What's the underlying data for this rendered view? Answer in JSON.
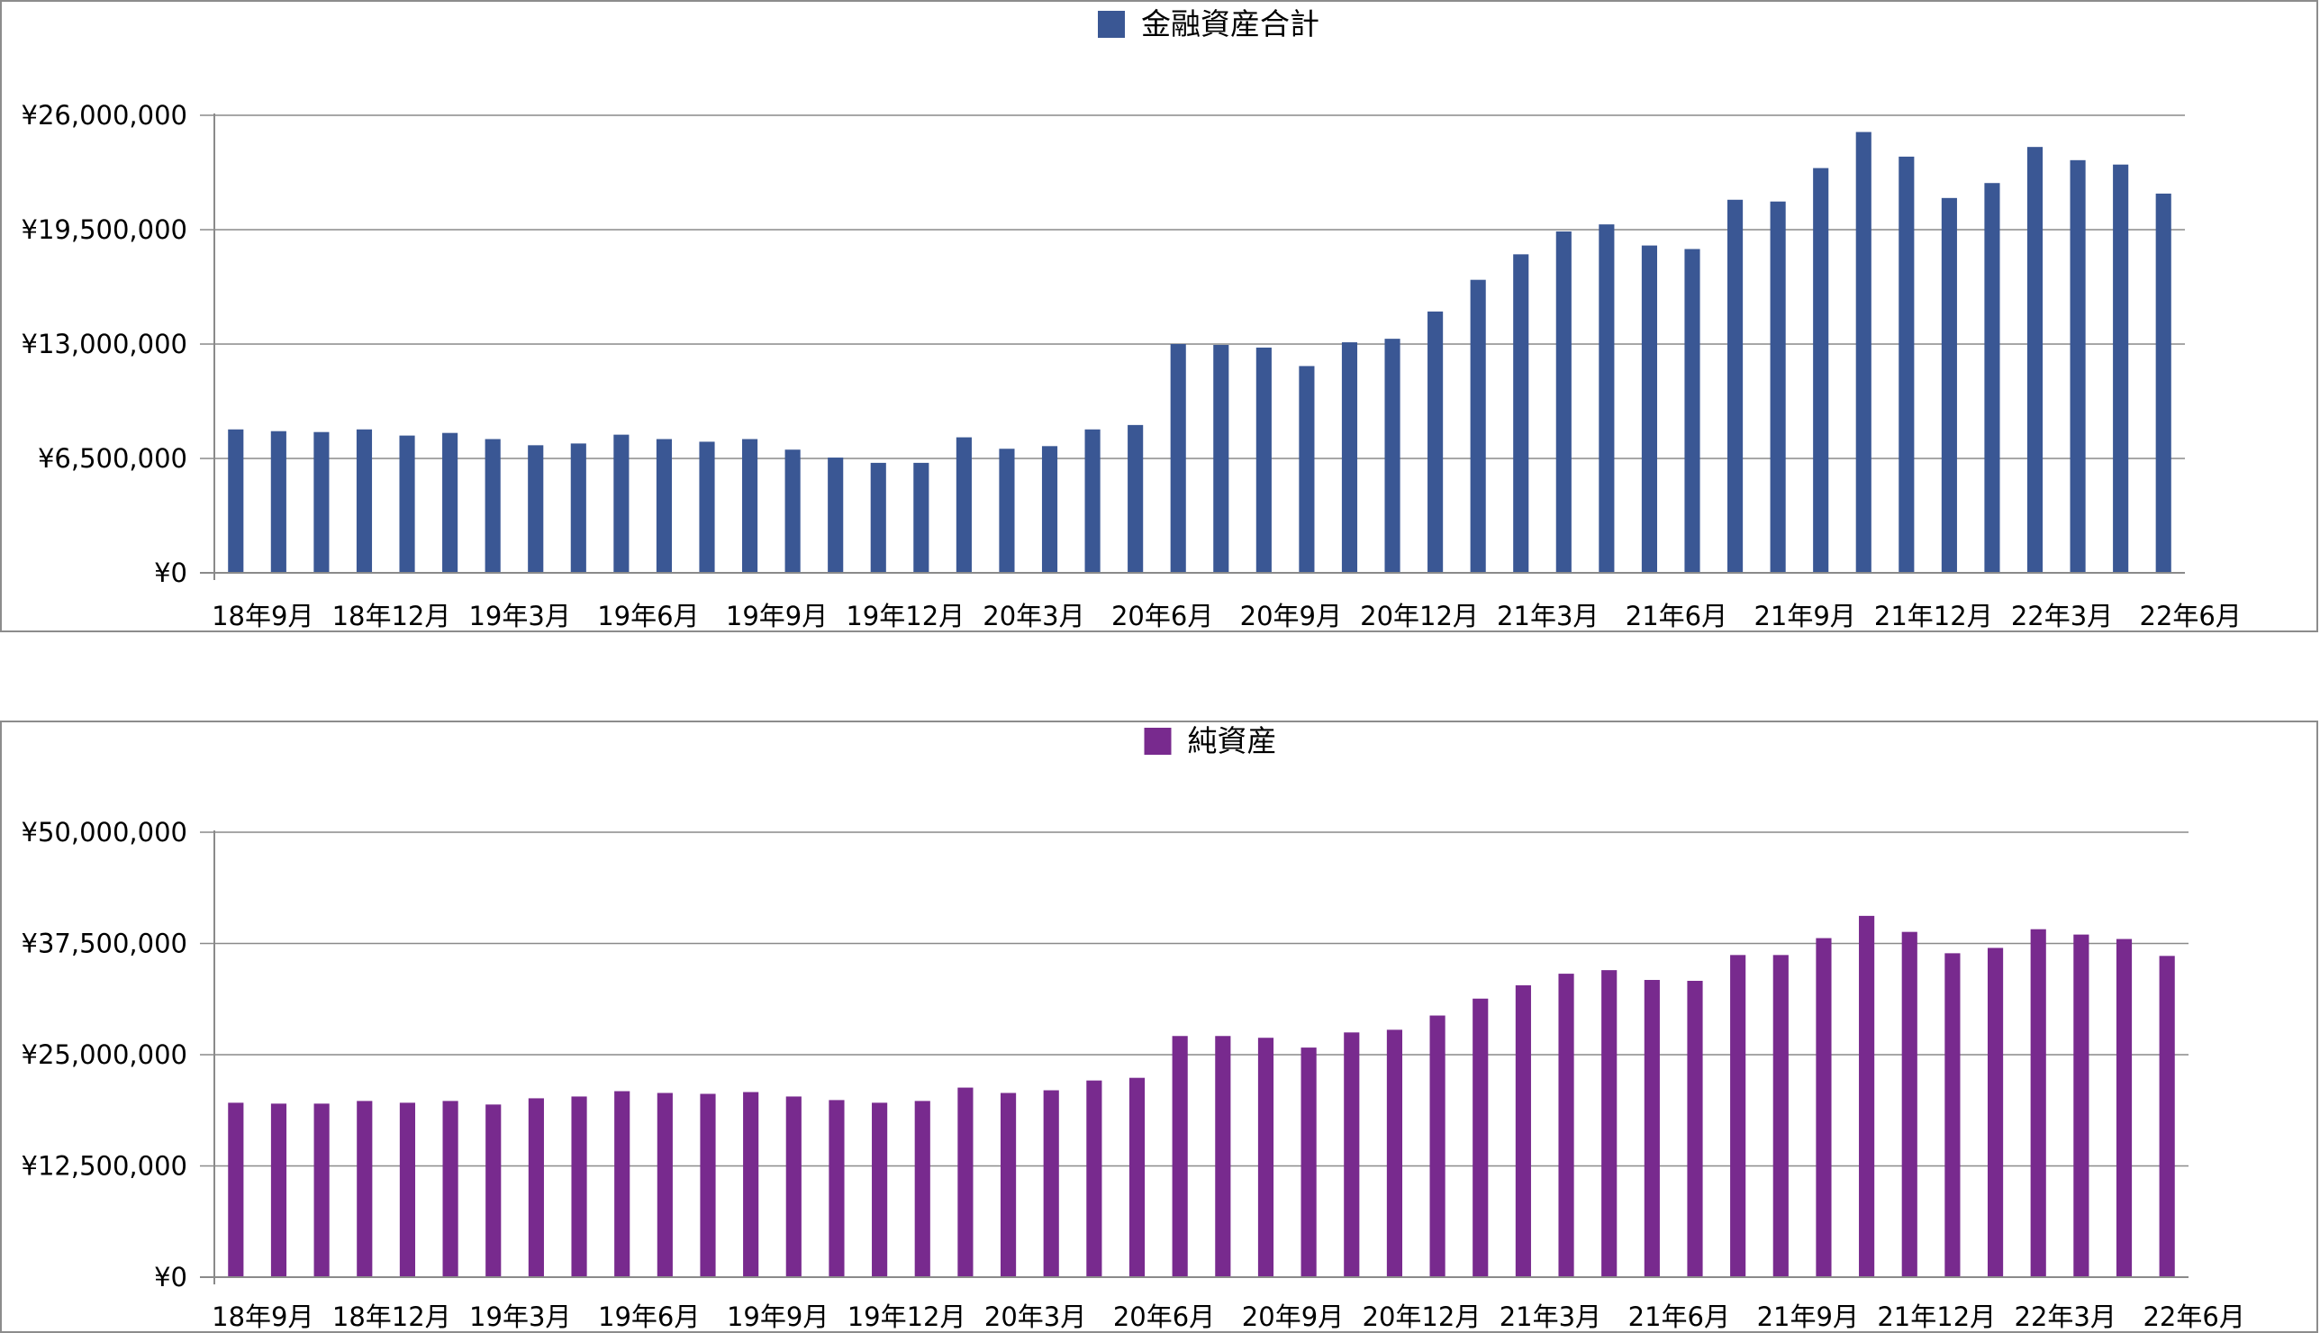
{
  "chart_data": [
    {
      "type": "bar",
      "legend": "金融資産合計",
      "legend_position": "top-center",
      "color": "#3a5794",
      "grid": true,
      "ylim": [
        0,
        26000000
      ],
      "y_ticks": [
        "¥0",
        "¥6,500,000",
        "¥13,000,000",
        "¥19,500,000",
        "¥26,000,000"
      ],
      "x_labels": [
        "18年9月",
        "18年12月",
        "19年3月",
        "19年6月",
        "19年9月",
        "19年12月",
        "20年3月",
        "20年6月",
        "20年9月",
        "20年12月",
        "21年3月",
        "21年6月",
        "21年9月",
        "21年12月",
        "22年3月",
        "22年6月"
      ],
      "values": [
        8150000,
        8050000,
        8000000,
        8150000,
        7800000,
        7950000,
        7600000,
        7250000,
        7350000,
        7850000,
        7600000,
        7450000,
        7600000,
        7000000,
        6550000,
        6250000,
        6250000,
        7700000,
        7050000,
        7200000,
        8150000,
        8400000,
        13000000,
        12950000,
        12800000,
        11750000,
        13100000,
        13300000,
        14850000,
        16650000,
        18100000,
        19400000,
        19800000,
        18600000,
        18400000,
        21200000,
        21100000,
        23000000,
        25050000,
        23650000,
        21300000,
        22150000,
        24200000,
        23450000,
        23200000,
        21550000
      ]
    },
    {
      "type": "bar",
      "legend": "純資産",
      "legend_position": "top-center",
      "color": "#782a8e",
      "grid": true,
      "ylim": [
        0,
        50000000
      ],
      "y_ticks": [
        "¥0",
        "¥12,500,000",
        "¥25,000,000",
        "¥37,500,000",
        "¥50,000,000"
      ],
      "x_labels": [
        "18年9月",
        "18年12月",
        "19年3月",
        "19年6月",
        "19年9月",
        "19年12月",
        "20年3月",
        "20年6月",
        "20年9月",
        "20年12月",
        "21年3月",
        "21年6月",
        "21年9月",
        "21年12月",
        "22年3月",
        "22年6月"
      ],
      "values": [
        19600000,
        19500000,
        19500000,
        19800000,
        19600000,
        19800000,
        19400000,
        20100000,
        20300000,
        20900000,
        20700000,
        20600000,
        20800000,
        20300000,
        19900000,
        19600000,
        19800000,
        21300000,
        20700000,
        21000000,
        22100000,
        22400000,
        27100000,
        27100000,
        26900000,
        25800000,
        27500000,
        27800000,
        29400000,
        31300000,
        32800000,
        34100000,
        34500000,
        33400000,
        33300000,
        36200000,
        36200000,
        38100000,
        40600000,
        38800000,
        36400000,
        37000000,
        39100000,
        38500000,
        38000000,
        36100000
      ]
    }
  ]
}
